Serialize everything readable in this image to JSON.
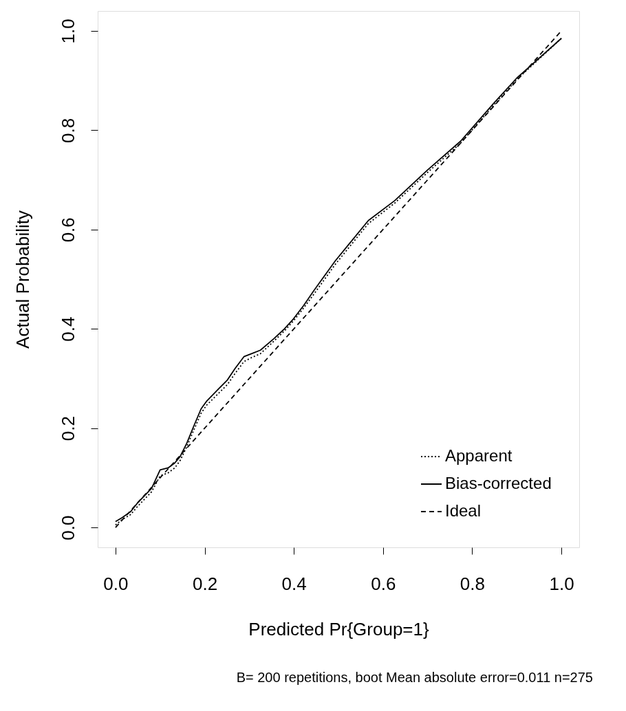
{
  "chart_data": {
    "type": "line",
    "xlabel": "Predicted Pr{Group=1}",
    "ylabel": "Actual Probability",
    "xlim": [
      -0.04,
      1.04
    ],
    "ylim": [
      -0.04,
      1.04
    ],
    "xticks": [
      {
        "value": 0,
        "label": "0.0"
      },
      0.2,
      0.4,
      0.6,
      0.8,
      {
        "value": 1,
        "label": "1.0"
      }
    ],
    "yticks": [
      {
        "value": 0,
        "label": "0.0"
      },
      0.2,
      0.4,
      0.6,
      0.8,
      {
        "value": 1,
        "label": "1.0"
      }
    ],
    "grid": false,
    "legend": "bottom right",
    "annotations": [
      "B= 200 repetitions, boot  Mean absolute error=0.011 n=275"
    ],
    "series": [
      {
        "name": "Apparent",
        "color": "#000000",
        "line_style": "dotted",
        "x": [
          0.0,
          0.015,
          0.034,
          0.049,
          0.064,
          0.081,
          0.1,
          0.118,
          0.133,
          0.145,
          0.16,
          0.175,
          0.192,
          0.204,
          0.231,
          0.251,
          0.268,
          0.288,
          0.305,
          0.325,
          0.355,
          0.379,
          0.399,
          0.422,
          0.445,
          0.493,
          0.567,
          0.626,
          0.7,
          0.774,
          0.848,
          0.9,
          1.0
        ],
        "values": [
          0.005,
          0.016,
          0.026,
          0.042,
          0.056,
          0.072,
          0.104,
          0.11,
          0.12,
          0.135,
          0.163,
          0.195,
          0.23,
          0.246,
          0.27,
          0.288,
          0.31,
          0.334,
          0.342,
          0.35,
          0.375,
          0.396,
          0.416,
          0.442,
          0.47,
          0.53,
          0.612,
          0.653,
          0.715,
          0.774,
          0.85,
          0.902,
          0.985
        ]
      },
      {
        "name": "Bias-corrected",
        "color": "#000000",
        "line_style": "solid",
        "x": [
          0.0,
          0.015,
          0.034,
          0.049,
          0.064,
          0.081,
          0.1,
          0.118,
          0.133,
          0.145,
          0.16,
          0.175,
          0.192,
          0.204,
          0.231,
          0.251,
          0.268,
          0.288,
          0.305,
          0.325,
          0.355,
          0.379,
          0.399,
          0.422,
          0.445,
          0.493,
          0.567,
          0.626,
          0.7,
          0.774,
          0.848,
          0.9,
          1.0
        ],
        "values": [
          0.012,
          0.02,
          0.032,
          0.049,
          0.063,
          0.079,
          0.116,
          0.12,
          0.13,
          0.143,
          0.17,
          0.203,
          0.239,
          0.254,
          0.279,
          0.297,
          0.32,
          0.344,
          0.35,
          0.357,
          0.38,
          0.4,
          0.42,
          0.447,
          0.477,
          0.537,
          0.618,
          0.658,
          0.72,
          0.778,
          0.854,
          0.905,
          0.985
        ]
      },
      {
        "name": "Ideal",
        "color": "#000000",
        "line_style": "dashed",
        "x": [
          0.0,
          1.0
        ],
        "values": [
          0.0,
          1.0
        ]
      }
    ]
  }
}
